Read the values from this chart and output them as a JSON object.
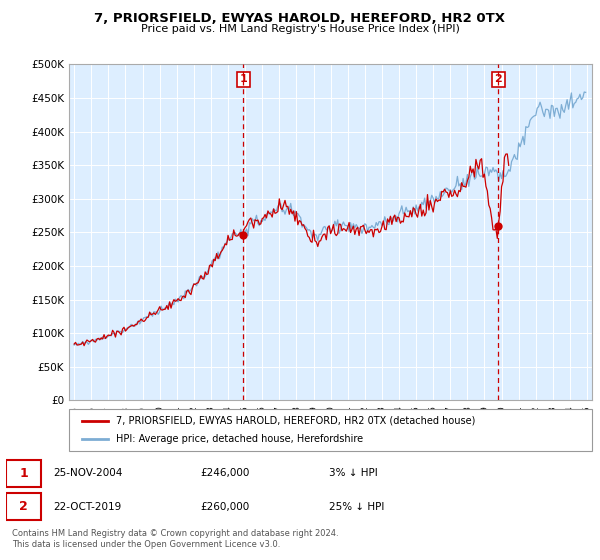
{
  "title": "7, PRIORSFIELD, EWYAS HAROLD, HEREFORD, HR2 0TX",
  "subtitle": "Price paid vs. HM Land Registry's House Price Index (HPI)",
  "ylabel_ticks": [
    "£0",
    "£50K",
    "£100K",
    "£150K",
    "£200K",
    "£250K",
    "£300K",
    "£350K",
    "£400K",
    "£450K",
    "£500K"
  ],
  "ytick_values": [
    0,
    50000,
    100000,
    150000,
    200000,
    250000,
    300000,
    350000,
    400000,
    450000,
    500000
  ],
  "xlim": [
    1994.7,
    2025.3
  ],
  "ylim": [
    0,
    500000
  ],
  "annotation1": {
    "label": "1",
    "date_num": 2004.9,
    "value": 246000,
    "text": "25-NOV-2004",
    "price": "£246,000",
    "pct": "3% ↓ HPI"
  },
  "annotation2": {
    "label": "2",
    "date_num": 2019.8,
    "value": 260000,
    "text": "22-OCT-2019",
    "price": "£260,000",
    "pct": "25% ↓ HPI"
  },
  "legend_line1": "7, PRIORSFIELD, EWYAS HAROLD, HEREFORD, HR2 0TX (detached house)",
  "legend_line2": "HPI: Average price, detached house, Herefordshire",
  "footer": "Contains HM Land Registry data © Crown copyright and database right 2024.\nThis data is licensed under the Open Government Licence v3.0.",
  "line_color_red": "#cc0000",
  "line_color_blue": "#7dadd4",
  "background_color": "#ddeeff",
  "prop_end_year": 2020.5,
  "hpi_end_year": 2025.0
}
